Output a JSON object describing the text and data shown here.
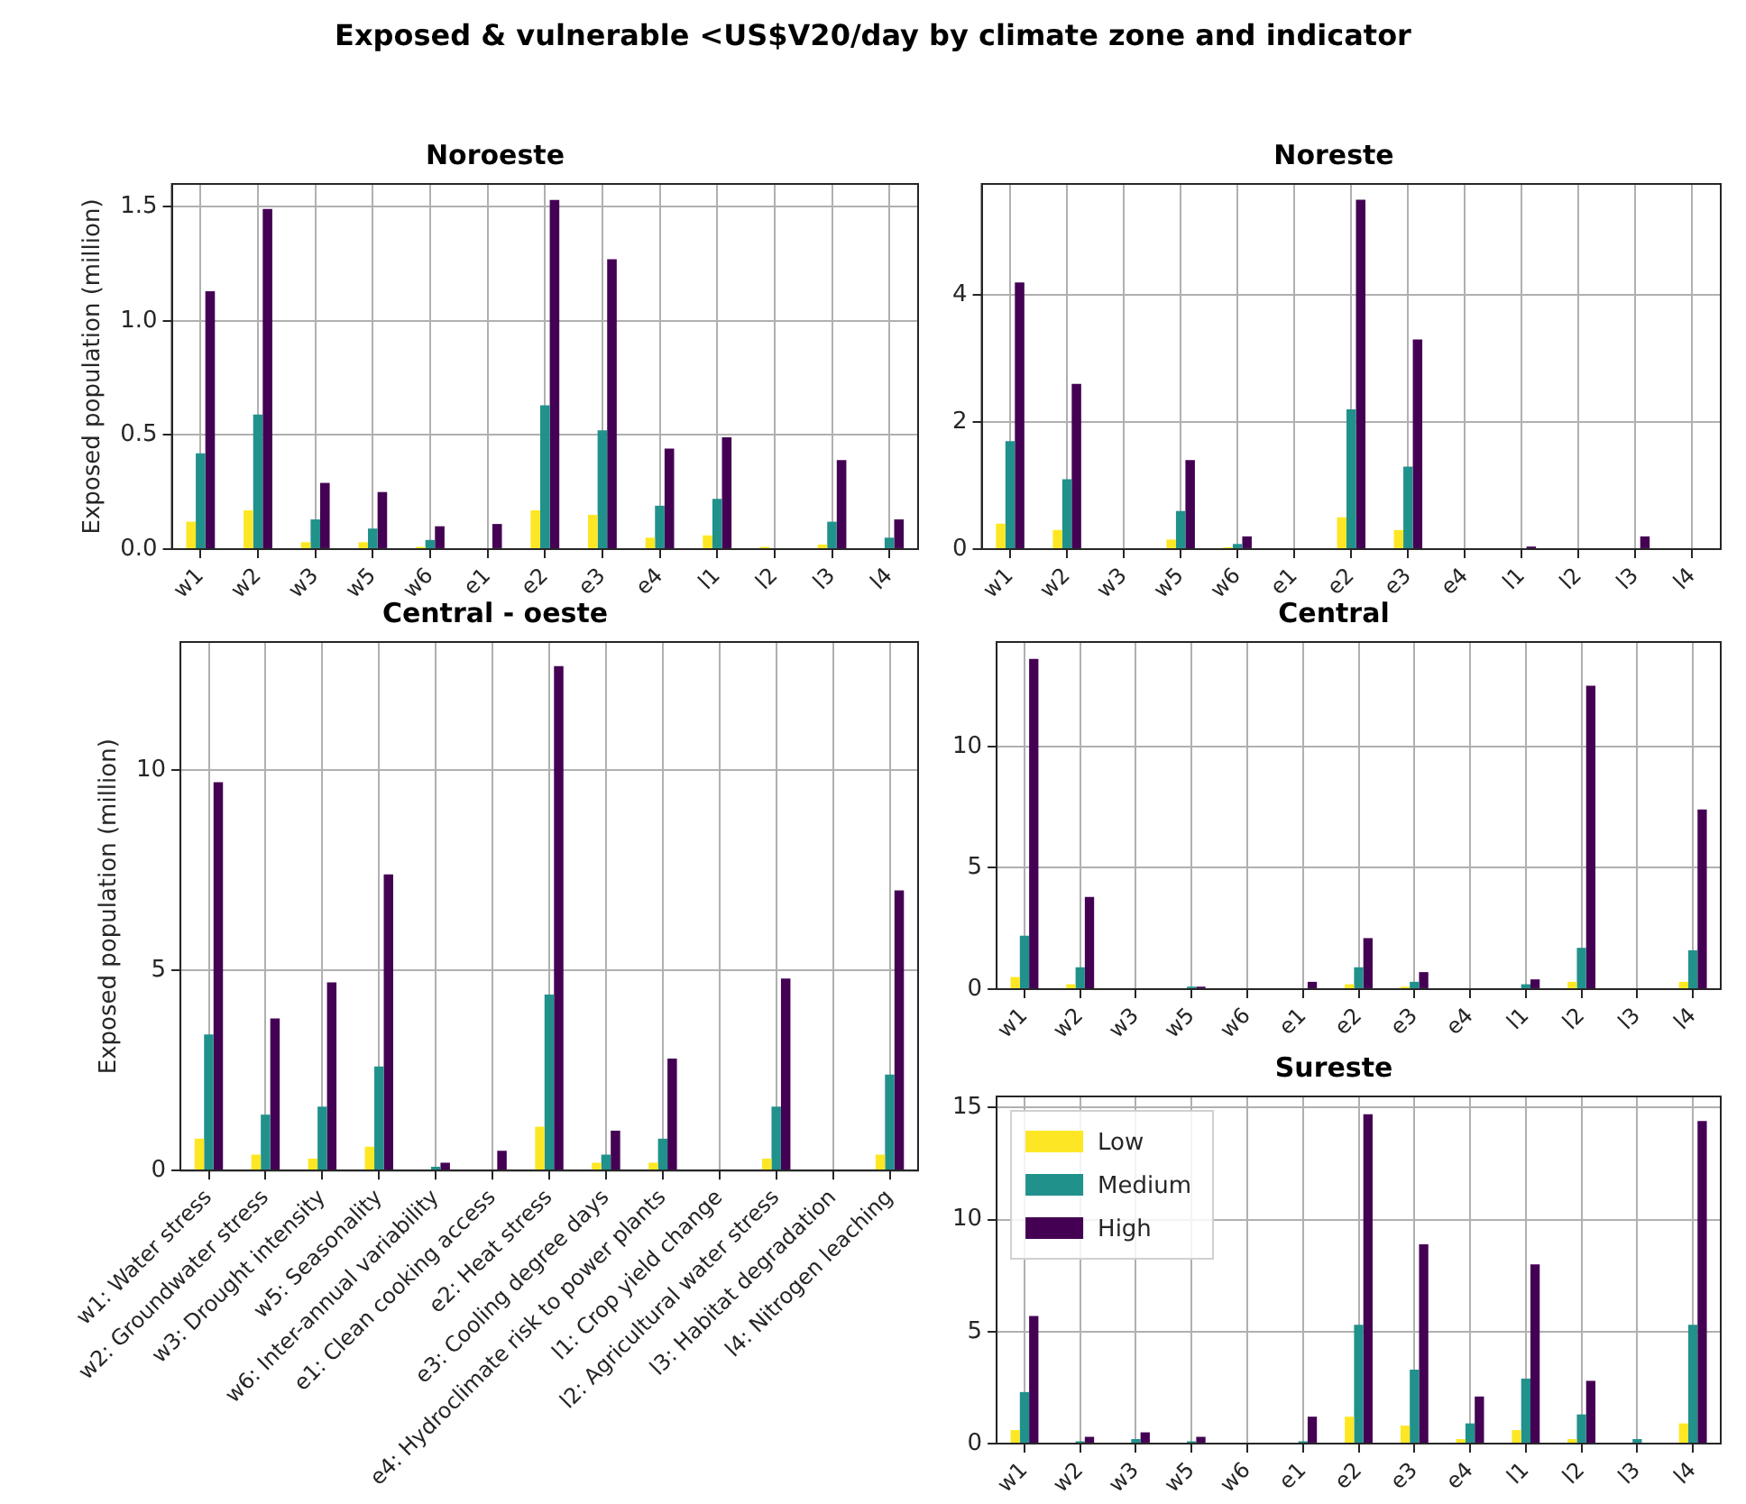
{
  "chart_data": [
    {
      "type": "bar",
      "title": "Noroeste",
      "ylabel": "Exposed population (million)",
      "annotations": [
        "Exposed & vulnerable <US$V20/day by climate zone and indicator"
      ],
      "categories": [
        "w1",
        "w2",
        "w3",
        "w5",
        "w6",
        "e1",
        "e2",
        "e3",
        "e4",
        "l1",
        "l2",
        "l3",
        "l4"
      ],
      "series": [
        {
          "color": "#fde725",
          "values": [
            0.12,
            0.17,
            0.03,
            0.03,
            0.01,
            0,
            0.17,
            0.15,
            0.05,
            0.06,
            0.01,
            0.02,
            0
          ]
        },
        {
          "color": "#21918c",
          "values": [
            0.42,
            0.59,
            0.13,
            0.09,
            0.04,
            0,
            0.63,
            0.52,
            0.19,
            0.22,
            0,
            0.12,
            0.05
          ]
        },
        {
          "color": "#440154",
          "values": [
            1.13,
            1.49,
            0.29,
            0.25,
            0.1,
            0.11,
            1.53,
            1.27,
            0.44,
            0.49,
            0,
            0.39,
            0.13
          ]
        }
      ],
      "ylim": [
        0,
        1.6
      ],
      "yticks": [
        {
          "value": 0,
          "label": "0.0"
        },
        0.5,
        {
          "value": 1,
          "label": "1.0"
        },
        1.5
      ],
      "grid": true
    },
    {
      "type": "bar",
      "title": "Noreste",
      "categories": [
        "w1",
        "w2",
        "w3",
        "w5",
        "w6",
        "e1",
        "e2",
        "e3",
        "e4",
        "l1",
        "l2",
        "l3",
        "l4"
      ],
      "series": [
        {
          "color": "#fde725",
          "values": [
            0.4,
            0.3,
            0,
            0.15,
            0.03,
            0,
            0.5,
            0.3,
            0,
            0,
            0,
            0,
            0
          ]
        },
        {
          "color": "#21918c",
          "values": [
            1.7,
            1.1,
            0,
            0.6,
            0.08,
            0,
            2.2,
            1.3,
            0,
            0,
            0,
            0,
            0
          ]
        },
        {
          "color": "#440154",
          "values": [
            4.2,
            2.6,
            0,
            1.4,
            0.2,
            0,
            5.5,
            3.3,
            0,
            0.04,
            0,
            0.2,
            0
          ]
        }
      ],
      "ylim": [
        0,
        5.75
      ],
      "yticks": [
        0,
        2,
        4
      ],
      "grid": true
    },
    {
      "type": "bar",
      "title": "Central - oeste",
      "ylabel": "Exposed population (million)",
      "categories": [
        "w1: Water stress",
        "w2: Groundwater stress",
        "w3: Drought intensity",
        "w5: Seasonality",
        "w6: Inter-annual variability",
        "e1: Clean cooking access",
        "e2: Heat stress",
        "e3: Cooling degree days",
        "e4: Hydroclimate risk to power plants",
        "l1: Crop yield change",
        "l2: Agricultural water stress",
        "l3: Habitat degradation",
        "l4: Nitrogen leaching"
      ],
      "series": [
        {
          "color": "#fde725",
          "values": [
            0.8,
            0.4,
            0.3,
            0.6,
            0,
            0,
            1.1,
            0.2,
            0.2,
            0,
            0.3,
            0,
            0.4
          ]
        },
        {
          "color": "#21918c",
          "values": [
            3.4,
            1.4,
            1.6,
            2.6,
            0.1,
            0,
            4.4,
            0.4,
            0.8,
            0,
            1.6,
            0,
            2.4
          ]
        },
        {
          "color": "#440154",
          "values": [
            9.7,
            3.8,
            4.7,
            7.4,
            0.2,
            0.5,
            12.6,
            1,
            2.8,
            0,
            4.8,
            0,
            7
          ]
        }
      ],
      "ylim": [
        0,
        13.2
      ],
      "yticks": [
        0,
        5,
        10
      ],
      "grid": true
    },
    {
      "type": "bar",
      "title": "Central",
      "categories": [
        "w1",
        "w2",
        "w3",
        "w5",
        "w6",
        "e1",
        "e2",
        "e3",
        "e4",
        "l1",
        "l2",
        "l3",
        "l4"
      ],
      "series": [
        {
          "color": "#fde725",
          "values": [
            0.5,
            0.2,
            0,
            0,
            0,
            0,
            0.2,
            0.1,
            0,
            0,
            0.3,
            0,
            0.3
          ]
        },
        {
          "color": "#21918c",
          "values": [
            2.2,
            0.9,
            0,
            0.1,
            0,
            0,
            0.9,
            0.3,
            0,
            0.2,
            1.7,
            0,
            1.6
          ]
        },
        {
          "color": "#440154",
          "values": [
            13.6,
            3.8,
            0,
            0.1,
            0,
            0.3,
            2.1,
            0.7,
            0,
            0.4,
            12.5,
            0,
            7.4
          ]
        }
      ],
      "ylim": [
        0,
        14.3
      ],
      "yticks": [
        0,
        5,
        10
      ],
      "grid": true
    },
    {
      "type": "bar",
      "title": "Sureste",
      "categories": [
        "w1",
        "w2",
        "w3",
        "w5",
        "w6",
        "e1",
        "e2",
        "e3",
        "e4",
        "l1",
        "l2",
        "l3",
        "l4"
      ],
      "series": [
        {
          "name": "Low",
          "color": "#fde725",
          "values": [
            0.6,
            0,
            0,
            0,
            0,
            0,
            1.2,
            0.8,
            0.2,
            0.6,
            0.2,
            0,
            0.9
          ]
        },
        {
          "name": "Medium",
          "color": "#21918c",
          "values": [
            2.3,
            0.1,
            0.2,
            0.1,
            0,
            0.1,
            5.3,
            3.3,
            0.9,
            2.9,
            1.3,
            0.2,
            5.3
          ]
        },
        {
          "name": "High",
          "color": "#440154",
          "values": [
            5.7,
            0.3,
            0.5,
            0.3,
            0,
            1.2,
            14.7,
            8.9,
            2.1,
            8,
            2.8,
            0,
            14.4
          ]
        }
      ],
      "ylim": [
        0,
        15.5
      ],
      "yticks": [
        0,
        5,
        10,
        15
      ],
      "grid": true,
      "legend": "top left"
    }
  ]
}
